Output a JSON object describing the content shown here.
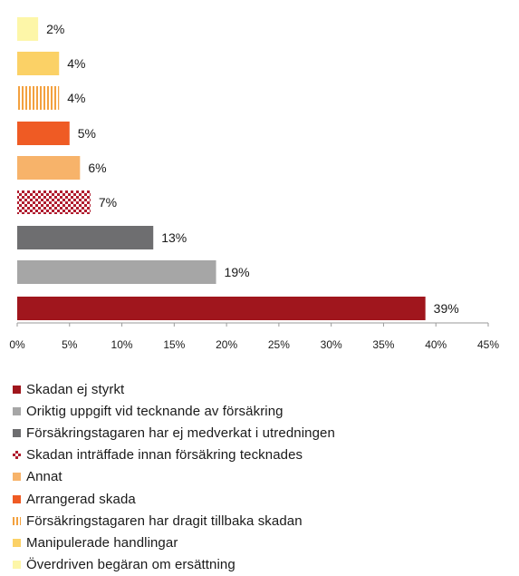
{
  "chart_data": {
    "type": "bar",
    "orientation": "horizontal",
    "xlim": [
      0,
      45
    ],
    "xticks": [
      "0%",
      "5%",
      "10%",
      "15%",
      "20%",
      "25%",
      "30%",
      "35%",
      "40%",
      "45%"
    ],
    "grid": false,
    "legend_position": "bottom",
    "categories": [
      "Skadan ej styrkt",
      "Oriktig uppgift vid tecknande av försäkring",
      "Försäkringstagaren har ej medverkat i utredningen",
      "Skadan inträffade innan försäkring tecknades",
      "Annat",
      "Arrangerad skada",
      "Försäkringstagaren har dragit tillbaka skadan",
      "Manipulerade handlingar",
      "Överdriven begäran om ersättning"
    ],
    "values": [
      39,
      19,
      13,
      7,
      6,
      5,
      4,
      4,
      2
    ],
    "labels": [
      "39%",
      "19%",
      "13%",
      "7%",
      "6%",
      "5%",
      "4%",
      "4%",
      "2%"
    ],
    "colors": [
      "#a0161d",
      "#a6a6a6",
      "#6e6e70",
      "#b01c2e",
      "#f7b36a",
      "#ef5b24",
      "#f3a13f",
      "#fbd166",
      "#fdf6a8"
    ],
    "patterns": [
      "solid",
      "solid",
      "solid",
      "checker",
      "solid",
      "solid",
      "vertical-stripes",
      "solid",
      "solid"
    ]
  }
}
